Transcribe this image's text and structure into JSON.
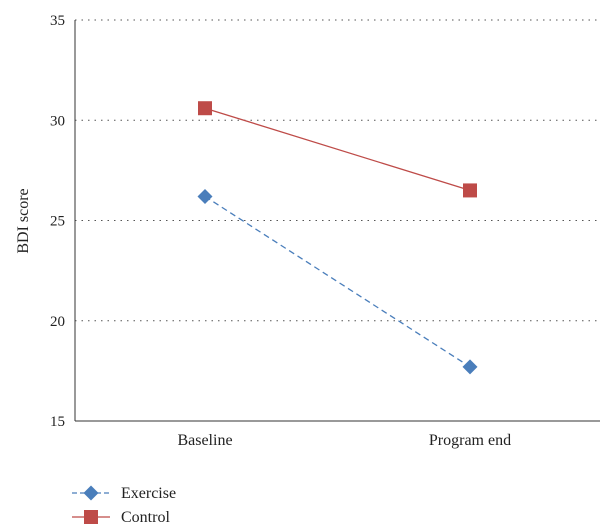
{
  "chart_data": {
    "type": "line",
    "title": "",
    "xlabel": "",
    "ylabel": "BDI score",
    "categories": [
      "Baseline",
      "Program end"
    ],
    "ylim": [
      15,
      35
    ],
    "yticks": [
      15,
      20,
      25,
      30,
      35
    ],
    "grid": true,
    "legend_position": "bottom-left",
    "series": [
      {
        "name": "Exercise",
        "values": [
          26.2,
          17.7
        ],
        "color": "#4a7ebb",
        "marker": "diamond",
        "line": "dashed"
      },
      {
        "name": "Control",
        "values": [
          30.6,
          26.5
        ],
        "color": "#be4b48",
        "marker": "square",
        "line": "solid"
      }
    ]
  }
}
